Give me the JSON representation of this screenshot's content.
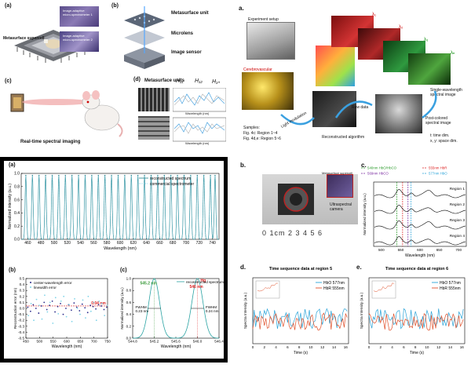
{
  "left_top": {
    "a": {
      "label": "(a)",
      "supercell": "Metasurface supercell",
      "spec1": "Image-adaptive\nmicro-spectrometer 1",
      "spec2": "Image-adaptive\nmicro-spectrometer 2"
    },
    "b": {
      "label": "(b)",
      "unit": "Metasurface unit",
      "microlens": "Microlens",
      "sensor": "Image sensor"
    },
    "c": {
      "label": "(c)",
      "caption": "Real-time spectral imaging"
    },
    "d": {
      "label": "(d)",
      "title": "Metasurface units",
      "h11": "H₁₁",
      "h12": "H₁₂",
      "h1n": "H₁ₙ",
      "xaxis": "Wavelength (nm)"
    }
  },
  "left_bottom": {
    "a": {
      "label": "(a)"
    },
    "b": {
      "label": "(b)"
    },
    "c": {
      "label": "(c)"
    }
  },
  "chart_data": [
    {
      "type": "line",
      "panel": "left-bottom-a",
      "xlabel": "Wavelength (nm)",
      "ylabel": "Normalized intensity (a.u.)",
      "xlim": [
        450,
        750
      ],
      "ylim": [
        0,
        1.0
      ],
      "xticks": [
        460,
        480,
        500,
        520,
        540,
        560,
        580,
        600,
        620,
        640,
        660,
        680,
        700,
        720,
        740
      ],
      "yticks": [
        0.0,
        0.2,
        0.4,
        0.6,
        0.8,
        1.0
      ],
      "legend": [
        "reconstructed spectrum",
        "commercial spectrometer"
      ],
      "peaks": [
        457,
        467,
        477,
        487,
        497,
        507,
        517,
        527,
        537,
        547,
        557,
        567,
        577,
        587,
        597,
        607,
        617,
        627,
        637,
        647,
        657,
        667,
        677,
        687,
        697,
        707,
        717,
        727,
        737,
        744
      ]
    },
    {
      "type": "scatter",
      "panel": "left-bottom-b",
      "xlabel": "Wavelength (nm)",
      "ylabel": "Reconstruction error (nm)",
      "xlim": [
        450,
        750
      ],
      "ylim": [
        -0.5,
        0.5
      ],
      "xticks": [
        450,
        500,
        550,
        600,
        650,
        700,
        750
      ],
      "yticks": [
        -0.5,
        -0.4,
        -0.3,
        -0.2,
        -0.1,
        0.0,
        0.1,
        0.2,
        0.3,
        0.4,
        0.5
      ],
      "legend": [
        "center-wavelength error",
        "linewidth error"
      ],
      "annotation": "0.04 nm"
    },
    {
      "type": "line",
      "panel": "left-bottom-c",
      "xlabel": "Wavelength (nm)",
      "ylabel": "Normalized intensity (a.u.)",
      "xlim": [
        544.8,
        546.4
      ],
      "ylim": [
        0,
        1.0
      ],
      "xticks": [
        544.8,
        545.2,
        545.6,
        546.0,
        546.4
      ],
      "yticks": [
        0.0,
        0.2,
        0.4,
        0.6,
        0.8,
        1.0
      ],
      "legend": [
        "reconstructed spectrum"
      ],
      "peak1": "545.2 nm",
      "peak2_name": "Hg",
      "peak2": "546 nm",
      "fwhm1": "FWHM\n0.23 nm",
      "fwhm2": "FWHM\n0.24 nm"
    },
    {
      "type": "line",
      "panel": "right-c",
      "xlabel": "Wavelength (nm)",
      "ylabel": "Normalized intensity (a.u.)",
      "xticks": [
        500,
        550,
        600,
        650,
        700
      ],
      "legend": [
        "540nm HbO/HbCO",
        "555nm HbR",
        "569nm HbCO",
        "577nm HbO"
      ],
      "regions": [
        "Region 1",
        "Region 2",
        "Region 3",
        "Region 4"
      ]
    },
    {
      "type": "line",
      "panel": "right-d",
      "title": "Time sequence data at region 5",
      "xlabel": "Time (s)",
      "ylabel": "Spectra Intensity (a.u.)",
      "xticks": [
        0,
        2,
        4,
        6,
        8,
        10,
        12,
        14,
        16
      ],
      "legend": [
        "HbO 577nm",
        "HbR 555nm"
      ]
    },
    {
      "type": "line",
      "panel": "right-e",
      "title": "Time sequence data at region 6",
      "xlabel": "Time (s)",
      "ylabel": "Spectra Intensity (a.u.)",
      "xticks": [
        0,
        2,
        4,
        6,
        8,
        10,
        12,
        14,
        16
      ],
      "legend": [
        "HbO 577nm",
        "HbR 555nm"
      ]
    }
  ],
  "right_top": {
    "label": "a.",
    "setup": "Experiment setup",
    "cerebro": "Cerebrovascular",
    "lambda1": "λ₁",
    "lambda2": "λ₂",
    "lambda3": "λ₃",
    "lambdaN": "λₙ",
    "single": "Single-wavelength\nspectral image",
    "samples": "Samples:",
    "s1": "Fig. 4c: Region 1~4",
    "s2": "Fig. 4d,e: Region 5~6",
    "light": "Light modulation",
    "raw": "Raw data",
    "recon": "Reconstructed algorithm",
    "post": "Post-colored\nspectral image",
    "tdim": "t: time dim.",
    "xydim": "x, y: space dim."
  },
  "right_b": {
    "label": "b.",
    "camera": "Ultraspectral\ncamera",
    "supercell": "Metasurface supercell",
    "ruler": "0 1cm 2 3 4 5 6"
  },
  "right_labels": {
    "c": "c.",
    "d": "d.",
    "e": "e."
  }
}
